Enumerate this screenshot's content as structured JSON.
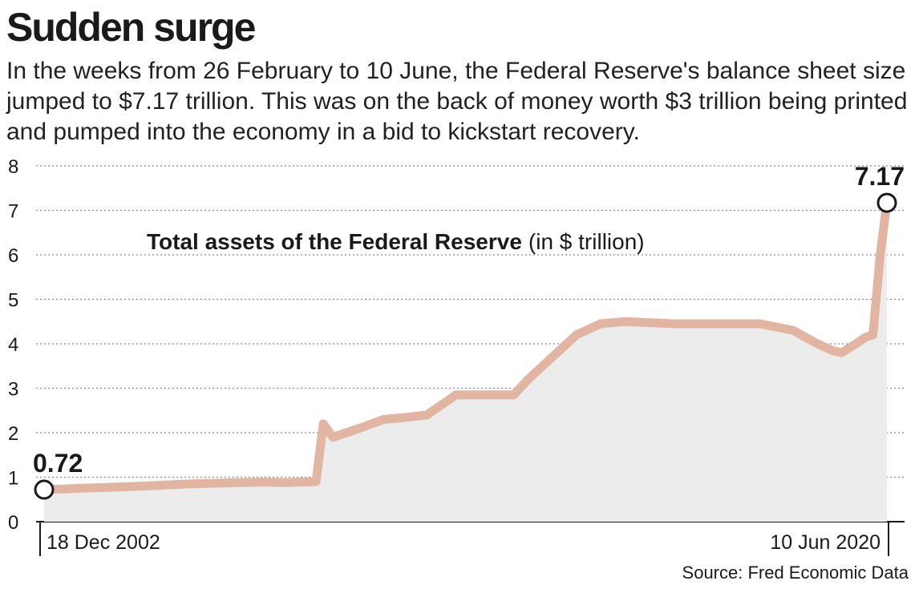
{
  "headline": "Sudden surge",
  "intro": "In the weeks from 26 February to 10 June, the Federal Reserve's balance sheet size jumped to $7.17 trillion. This was on the back of money worth $3 trillion being printed and pumped into the economy in a bid to kickstart recovery.",
  "source": "Source: Fred Economic Data",
  "colors": {
    "line": "#e2b5a3",
    "area": "#ececec",
    "text": "#1a1a1a"
  },
  "chart_data": {
    "type": "area",
    "title": "Total assets of the Federal Reserve",
    "title_unit": "(in $ trillion)",
    "xlabel": "",
    "ylabel": "",
    "ylim": [
      0,
      8
    ],
    "yticks": [
      0,
      1,
      2,
      3,
      4,
      5,
      6,
      7,
      8
    ],
    "grid": true,
    "x_start_label": "18 Dec 2002",
    "x_end_label": "10 Jun 2020",
    "start_value_label": "0.72",
    "end_value_label": "7.17",
    "x": [
      2002.96,
      2004.0,
      2005.0,
      2006.0,
      2007.0,
      2007.5,
      2008.0,
      2008.6,
      2008.75,
      2008.95,
      2009.5,
      2010.0,
      2010.5,
      2010.9,
      2011.5,
      2012.0,
      2012.7,
      2013.0,
      2013.5,
      2014.0,
      2014.5,
      2015.0,
      2016.0,
      2017.0,
      2017.8,
      2018.5,
      2019.0,
      2019.3,
      2019.5,
      2019.8,
      2020.0,
      2020.15,
      2020.3,
      2020.44
    ],
    "series": [
      {
        "values": [
          0.72,
          0.76,
          0.8,
          0.85,
          0.88,
          0.89,
          0.88,
          0.9,
          2.2,
          1.9,
          2.1,
          2.3,
          2.35,
          2.4,
          2.85,
          2.85,
          2.85,
          3.2,
          3.7,
          4.2,
          4.45,
          4.5,
          4.45,
          4.45,
          4.45,
          4.3,
          4.0,
          3.85,
          3.8,
          4.0,
          4.15,
          4.2,
          6.0,
          7.17
        ]
      }
    ]
  }
}
